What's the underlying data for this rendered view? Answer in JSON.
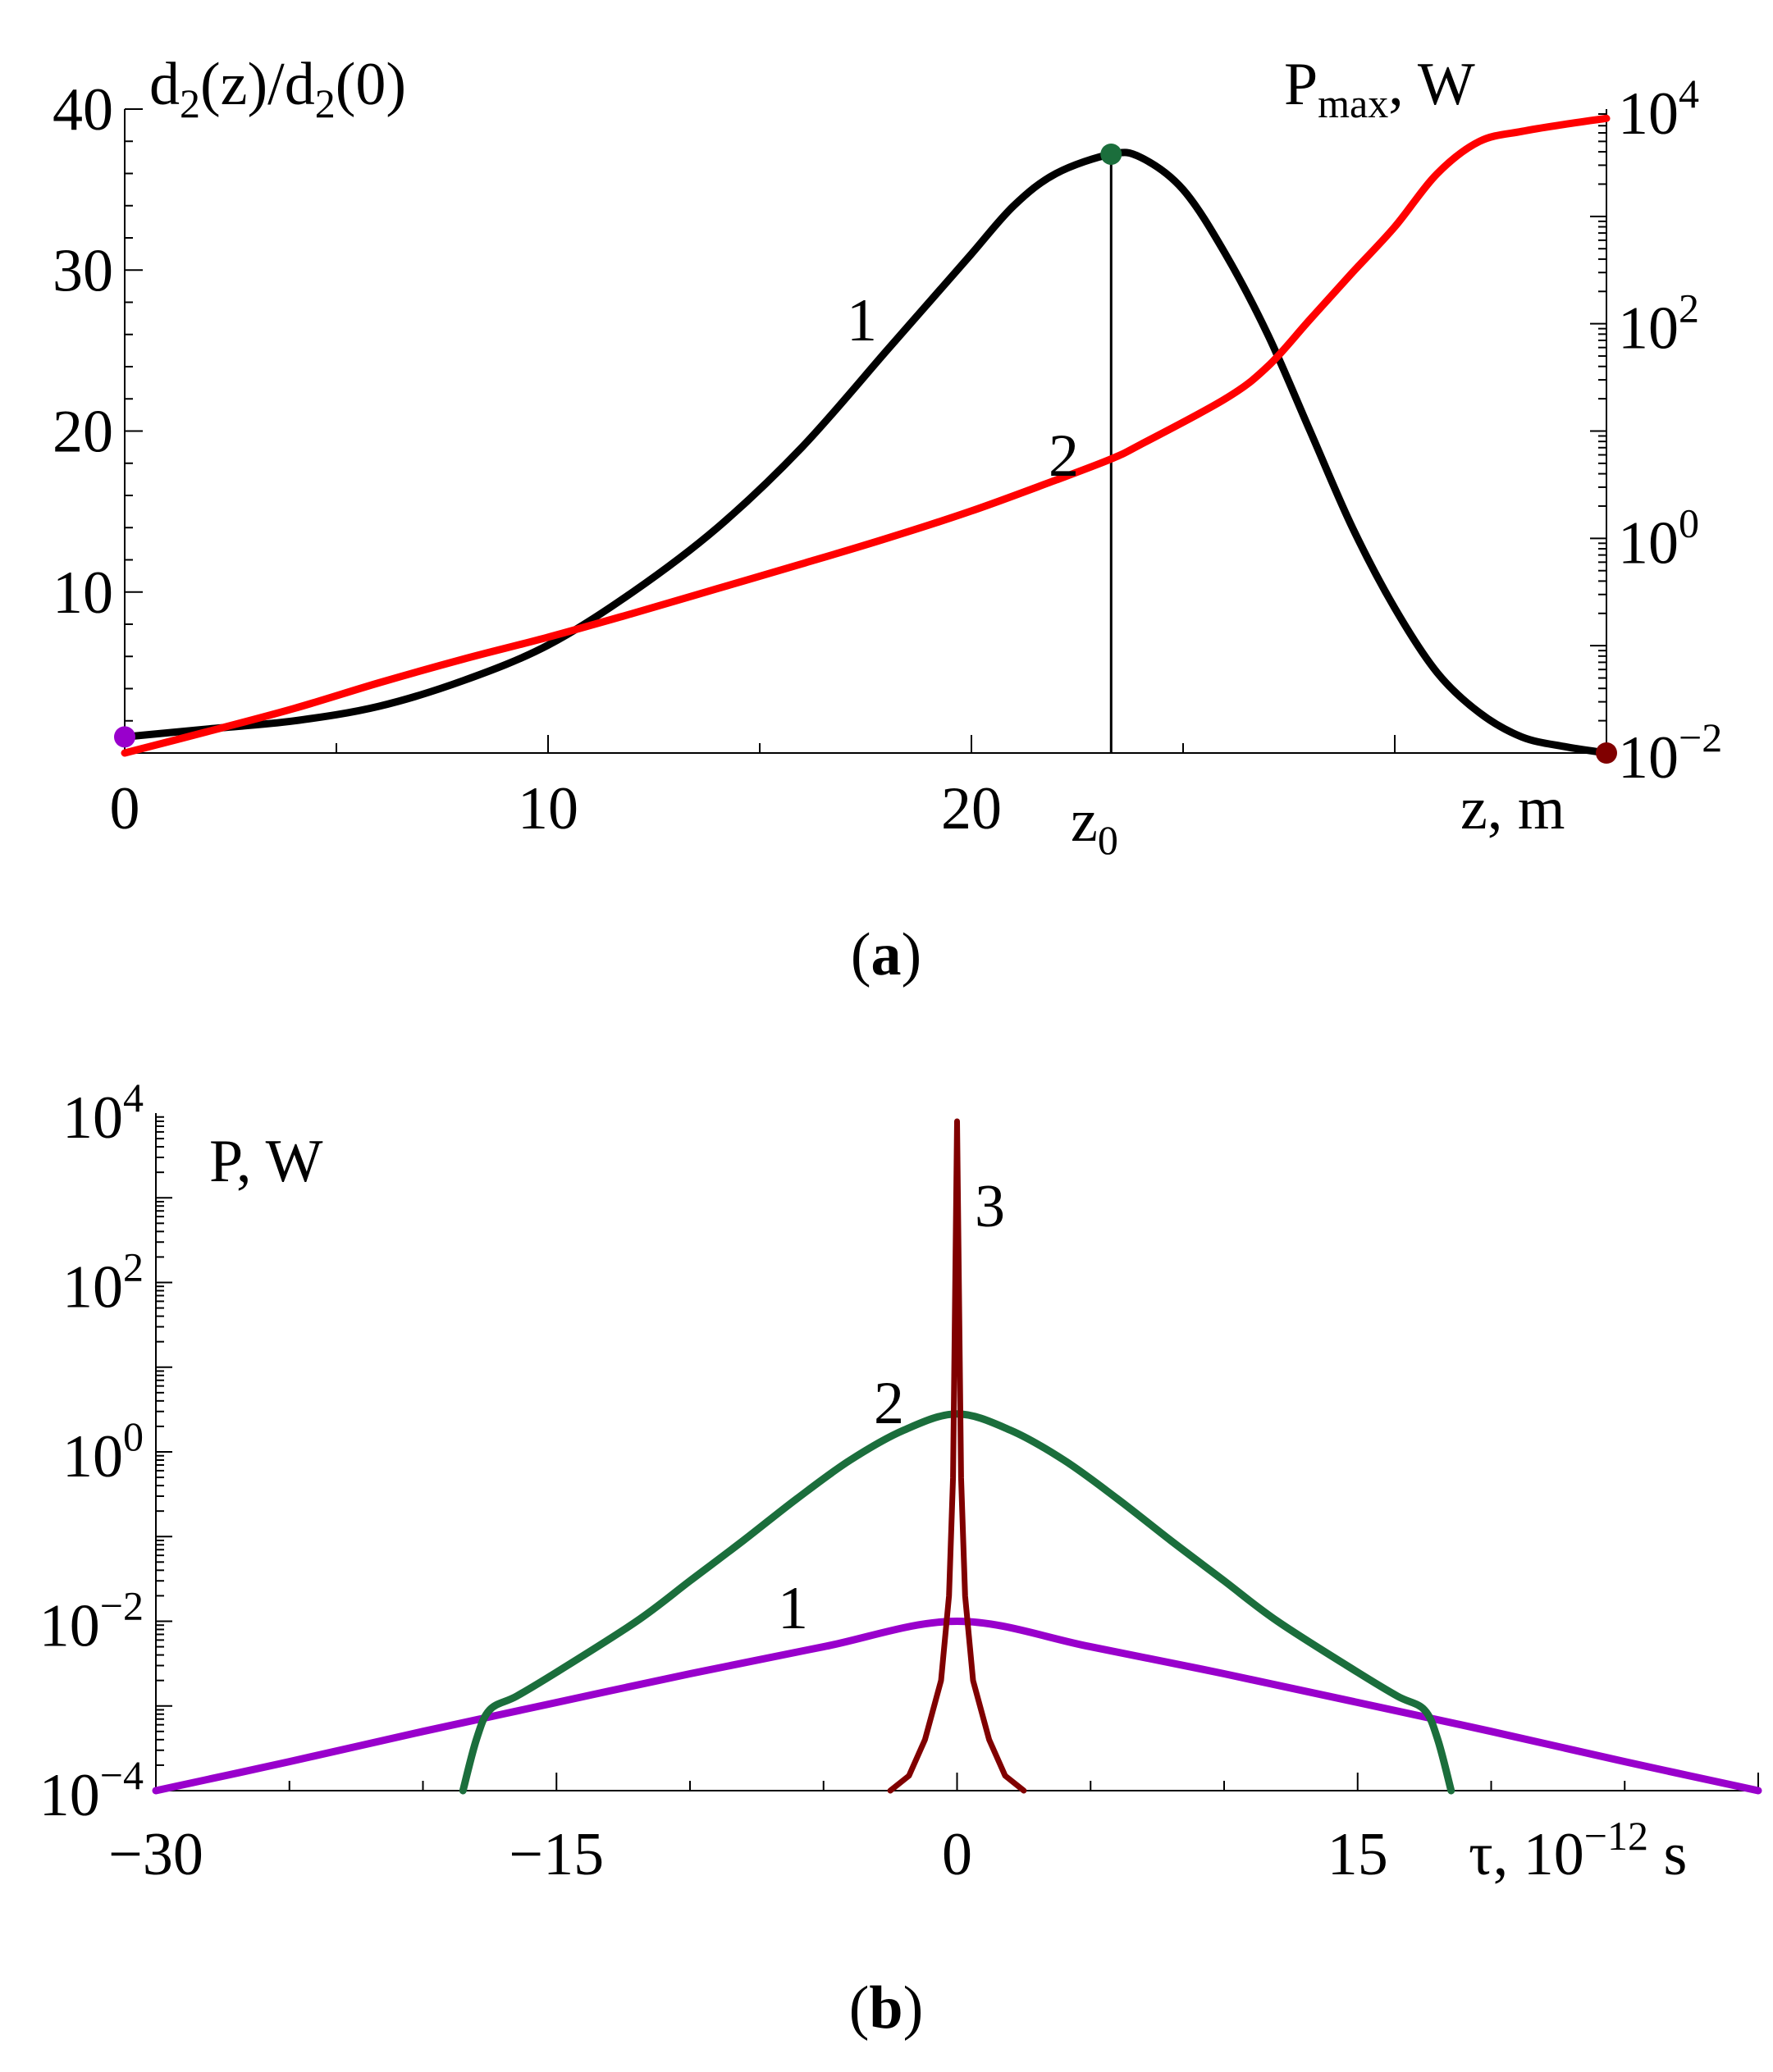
{
  "panel_a": {
    "caption": "(a)",
    "chart_data": {
      "type": "line",
      "left_axis_label": "d2(z)/d2(0)",
      "right_axis_label": "Pmax, W",
      "xlabel": "z, m",
      "xlim": [
        0,
        35
      ],
      "ylim_left": [
        0,
        40
      ],
      "ylim_right_log10": [
        -2,
        4
      ],
      "x_ticks": [
        "0",
        "10",
        "20",
        "z0"
      ],
      "y_ticks_left": [
        "10",
        "20",
        "30",
        "40"
      ],
      "y_ticks_right": [
        "10^-2",
        "10^0",
        "10^2",
        "10^4"
      ],
      "z0_marker": {
        "x": 23.3,
        "label": "z0"
      },
      "series": [
        {
          "name": "1",
          "color": "#000000",
          "axis": "left",
          "x": [
            0,
            2,
            4,
            6,
            8,
            10,
            12,
            14,
            16,
            18,
            19,
            20,
            21,
            22,
            23.3,
            24,
            25,
            26,
            27,
            28,
            29,
            30,
            31,
            32,
            33,
            34,
            35
          ],
          "y": [
            1,
            1.5,
            2,
            2.9,
            4.5,
            6.7,
            10,
            14,
            19,
            25,
            28,
            31,
            34,
            36,
            37.2,
            37,
            35,
            31,
            26,
            20,
            14,
            9,
            5,
            2.5,
            1,
            0.4,
            0
          ]
        },
        {
          "name": "2",
          "color": "#ff0000",
          "axis": "right",
          "x": [
            0,
            2,
            4,
            6,
            8,
            10,
            12,
            14,
            16,
            18,
            20,
            22,
            23.3,
            24,
            26,
            27,
            28,
            29,
            30,
            31,
            32,
            33,
            34,
            35
          ],
          "y": [
            0.01,
            0.016,
            0.026,
            0.045,
            0.075,
            0.12,
            0.2,
            0.34,
            0.58,
            1.0,
            1.8,
            3.5,
            5.5,
            7.5,
            20,
            40,
            110,
            300,
            800,
            2500,
            5000,
            6200,
            7200,
            8200
          ]
        }
      ],
      "markers": [
        {
          "x": 0,
          "y": 1,
          "axis": "left",
          "color": "#9900cc"
        },
        {
          "x": 23.3,
          "y": 37.2,
          "axis": "left",
          "color": "#1b6e3c"
        },
        {
          "x": 35,
          "y": 0,
          "axis": "left",
          "color": "#800000"
        }
      ]
    }
  },
  "panel_b": {
    "caption": "(b)",
    "chart_data": {
      "type": "line",
      "ylabel": "P, W",
      "xlabel": "τ, 10^-12 s",
      "xlim": [
        -30,
        30
      ],
      "ylim_log10": [
        -4,
        4
      ],
      "x_ticks": [
        "-30",
        "-15",
        "0",
        "15"
      ],
      "y_ticks": [
        "10^-4",
        "10^-2",
        "10^0",
        "10^2",
        "10^4"
      ],
      "series": [
        {
          "name": "1",
          "color": "#9900cc",
          "x": [
            -30,
            -25,
            -20,
            -15,
            -10,
            -5,
            0,
            5,
            10,
            15,
            20,
            25,
            30
          ],
          "y": [
            0.0001,
            0.00022,
            0.0005,
            0.0011,
            0.0024,
            0.005,
            0.01,
            0.005,
            0.0024,
            0.0011,
            0.0005,
            0.00022,
            0.0001
          ]
        },
        {
          "name": "2",
          "color": "#1b6e3c",
          "x": [
            -18.5,
            -18,
            -17.5,
            -16.5,
            -15,
            -12,
            -10,
            -8,
            -6,
            -4,
            -2,
            0,
            2,
            4,
            6,
            8,
            10,
            12,
            15,
            16.5,
            17.5,
            18,
            18.5
          ],
          "y": [
            0.0001,
            0.0004,
            0.0009,
            0.0013,
            0.0025,
            0.01,
            0.03,
            0.09,
            0.28,
            0.8,
            1.8,
            2.8,
            1.8,
            0.8,
            0.28,
            0.09,
            0.03,
            0.01,
            0.0025,
            0.0013,
            0.0009,
            0.0004,
            0.0001
          ]
        },
        {
          "name": "3",
          "color": "#800000",
          "x": [
            -2.5,
            -1.8,
            -1.2,
            -0.6,
            -0.3,
            -0.15,
            0,
            0.15,
            0.3,
            0.6,
            1.2,
            1.8,
            2.5
          ],
          "y": [
            0.0001,
            0.00015,
            0.0004,
            0.002,
            0.02,
            0.5,
            8000,
            0.5,
            0.02,
            0.002,
            0.0004,
            0.00015,
            0.0001
          ]
        }
      ]
    }
  }
}
